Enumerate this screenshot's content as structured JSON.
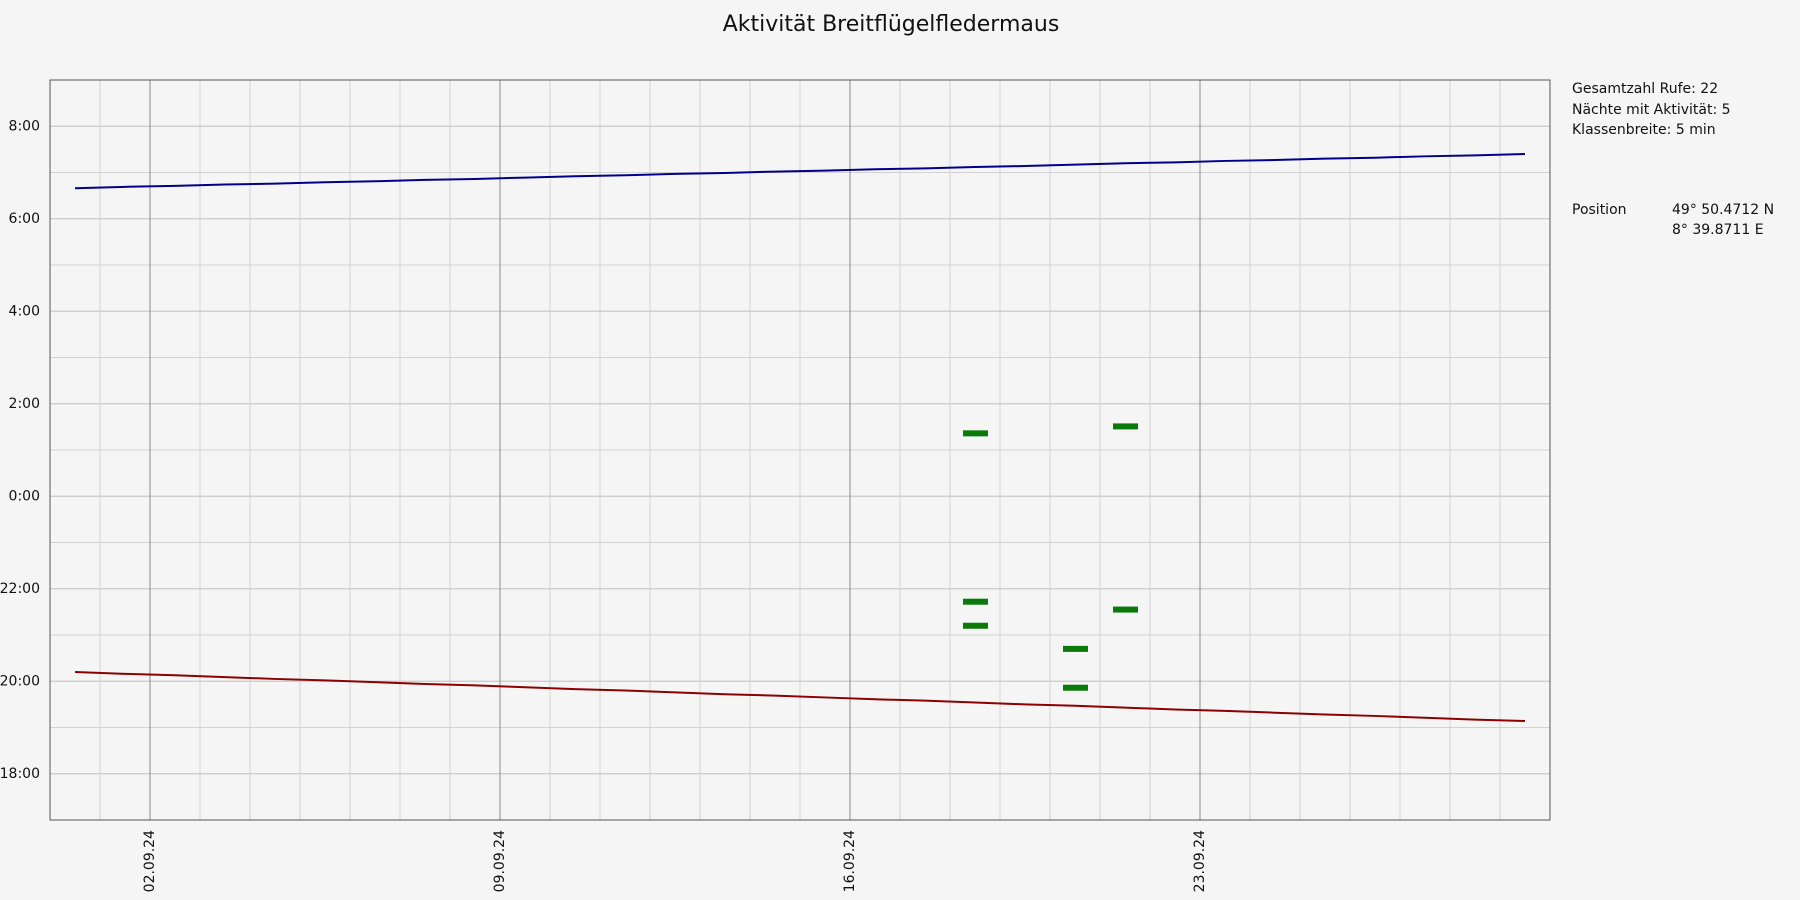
{
  "chart_data": {
    "type": "scatter",
    "title": "Aktivität Breitflügelfledermaus",
    "xlim": [
      0,
      30
    ],
    "xticks": [
      {
        "value": 2,
        "label": "02.09.24"
      },
      {
        "value": 9,
        "label": "09.09.24"
      },
      {
        "value": 16,
        "label": "16.09.24"
      },
      {
        "value": 23,
        "label": "23.09.24"
      }
    ],
    "ylim": [
      17,
      33
    ],
    "yticks": [
      {
        "value": 18,
        "label": "18:00"
      },
      {
        "value": 20,
        "label": "20:00"
      },
      {
        "value": 22,
        "label": "22:00"
      },
      {
        "value": 24,
        "label": "0:00"
      },
      {
        "value": 26,
        "label": "2:00"
      },
      {
        "value": 28,
        "label": "4:00"
      },
      {
        "value": 30,
        "label": "6:00"
      },
      {
        "value": 32,
        "label": "8:00"
      }
    ],
    "grid": true,
    "x": [
      18.5,
      18.5,
      18.5,
      20.5,
      20.5,
      21.5,
      21.5
    ],
    "values": [
      25.36,
      21.72,
      21.2,
      20.7,
      19.86,
      25.51,
      21.55
    ],
    "color": "#0a7a0a",
    "lines": [
      {
        "color": "#8b0000",
        "x": [
          0.5,
          1.5,
          2.5,
          3.5,
          4.5,
          5.5,
          6.5,
          7.5,
          8.5,
          9.5,
          10.5,
          11.5,
          12.5,
          13.5,
          14.5,
          15.5,
          16.5,
          17.5,
          18.5,
          19.5,
          20.5,
          21.5,
          22.5,
          23.5,
          24.5,
          25.5,
          26.5,
          27.5,
          28.5,
          29.5
        ],
        "values": [
          20.2,
          20.16,
          20.13,
          20.09,
          20.05,
          20.02,
          19.98,
          19.94,
          19.91,
          19.87,
          19.83,
          19.8,
          19.76,
          19.72,
          19.69,
          19.65,
          19.61,
          19.58,
          19.54,
          19.5,
          19.47,
          19.43,
          19.39,
          19.36,
          19.32,
          19.28,
          19.25,
          19.21,
          19.17,
          19.14
        ]
      },
      {
        "color": "#00008b",
        "x": [
          0.5,
          1.5,
          2.5,
          3.5,
          4.5,
          5.5,
          6.5,
          7.5,
          8.5,
          9.5,
          10.5,
          11.5,
          12.5,
          13.5,
          14.5,
          15.5,
          16.5,
          17.5,
          18.5,
          19.5,
          20.5,
          21.5,
          22.5,
          23.5,
          24.5,
          25.5,
          26.5,
          27.5,
          28.5,
          29.5
        ],
        "values": [
          30.66,
          30.69,
          30.71,
          30.74,
          30.76,
          30.79,
          30.81,
          30.84,
          30.86,
          30.89,
          30.92,
          30.94,
          30.97,
          30.99,
          31.02,
          31.04,
          31.07,
          31.09,
          31.12,
          31.14,
          31.17,
          31.2,
          31.22,
          31.25,
          31.27,
          31.3,
          31.32,
          31.35,
          31.37,
          31.4
        ]
      }
    ],
    "info": [
      "Gesamtzahl Rufe: 22",
      "Nächte mit Aktivität: 5",
      "Klassenbreite: 5 min"
    ],
    "position": {
      "label": "Position",
      "lat": "49° 50.4712 N",
      "lon": "8° 39.8711 E"
    }
  }
}
